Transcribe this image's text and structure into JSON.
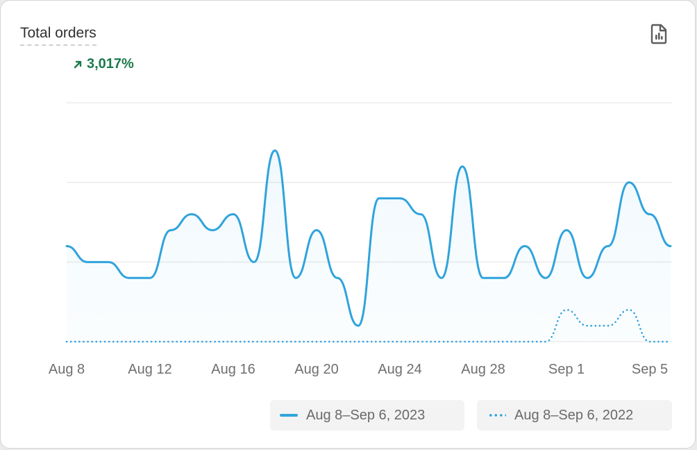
{
  "card": {
    "title": "Total orders",
    "change": "3,017%",
    "change_direction": "up",
    "change_color": "#1b7a4c",
    "export_icon": "chart-report-icon"
  },
  "chart_data": {
    "type": "line",
    "x": [
      "Aug 8",
      "Aug 9",
      "Aug 10",
      "Aug 11",
      "Aug 12",
      "Aug 13",
      "Aug 14",
      "Aug 15",
      "Aug 16",
      "Aug 17",
      "Aug 18",
      "Aug 19",
      "Aug 20",
      "Aug 21",
      "Aug 22",
      "Aug 23",
      "Aug 24",
      "Aug 25",
      "Aug 26",
      "Aug 27",
      "Aug 28",
      "Aug 29",
      "Aug 30",
      "Aug 31",
      "Sep 1",
      "Sep 2",
      "Sep 3",
      "Sep 4",
      "Sep 5",
      "Sep 6"
    ],
    "xticks": [
      "Aug 8",
      "Aug 12",
      "Aug 16",
      "Aug 20",
      "Aug 24",
      "Aug 28",
      "Sep 1",
      "Sep 5"
    ],
    "ylim": [
      0,
      3
    ],
    "grid": true,
    "legend_position": "bottom-right",
    "series": [
      {
        "name": "Aug 8–Sep 6, 2023",
        "style": "solid",
        "color": "#2fa3dc",
        "values": [
          1.2,
          1.0,
          1.0,
          0.8,
          0.8,
          1.4,
          1.6,
          1.4,
          1.6,
          1.0,
          2.4,
          0.8,
          1.4,
          0.8,
          0.2,
          1.8,
          1.8,
          1.6,
          0.8,
          2.2,
          0.8,
          0.8,
          1.2,
          0.8,
          1.4,
          0.8,
          1.2,
          2.0,
          1.6,
          1.2
        ]
      },
      {
        "name": "Aug 8–Sep 6, 2022",
        "style": "dotted",
        "color": "#2fa3dc",
        "values": [
          0,
          0,
          0,
          0,
          0,
          0,
          0,
          0,
          0,
          0,
          0,
          0,
          0,
          0,
          0,
          0,
          0,
          0,
          0,
          0,
          0,
          0,
          0,
          0,
          0.4,
          0.2,
          0.2,
          0.4,
          0,
          0
        ]
      }
    ]
  }
}
